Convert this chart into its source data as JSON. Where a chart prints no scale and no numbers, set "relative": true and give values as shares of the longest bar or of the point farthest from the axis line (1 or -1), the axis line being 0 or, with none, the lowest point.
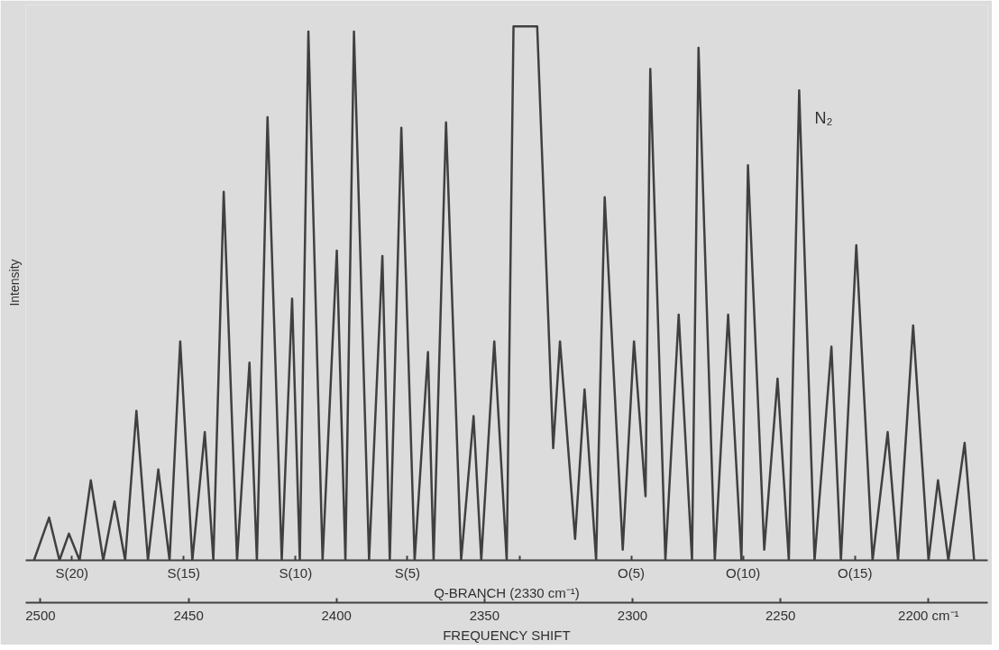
{
  "chart_data": {
    "type": "line",
    "relative": true,
    "xlabel": "FREQUENCY SHIFT",
    "ylabel": "Intensity",
    "annotations": [
      "N₂",
      "S(20)",
      "S(15)",
      "S(10)",
      "S(5)",
      "Q-BRANCH (2330 cm⁻¹)",
      "O(5)",
      "O(10)",
      "O(15)"
    ],
    "xlim": [
      2505,
      2180
    ],
    "xticks": [
      2500,
      2450,
      2400,
      2350,
      2300,
      2250,
      {
        "value": 2200,
        "label": "2200 cm⁻¹"
      }
    ],
    "grid": false,
    "marker": "none",
    "line_style": "solid",
    "series": [
      {
        "color": "#404040",
        "x": [
          2502.2,
          2497.1,
          2493.6,
          2490.4,
          2486.8,
          2483.0,
          2478.8,
          2475.0,
          2471.4,
          2467.6,
          2463.7,
          2460.2,
          2456.4,
          2452.8,
          2448.7,
          2444.5,
          2441.6,
          2438.1,
          2433.6,
          2429.4,
          2426.9,
          2423.3,
          2418.5,
          2415.0,
          2412.4,
          2409.5,
          2404.7,
          2399.9,
          2397.0,
          2394.1,
          2389.0,
          2384.5,
          2382.0,
          2378.1,
          2373.6,
          2369.1,
          2367.2,
          2363.0,
          2357.9,
          2353.7,
          2351.1,
          2346.7,
          2342.5,
          2340.2,
          2332.2,
          2326.8,
          2324.5,
          2319.4,
          2316.2,
          2312.3,
          2309.4,
          2303.3,
          2299.5,
          2295.6,
          2294.0,
          2288.9,
          2284.4,
          2279.9,
          2277.7,
          2272.2,
          2267.7,
          2263.2,
          2261.0,
          2255.5,
          2251.0,
          2247.2,
          2243.7,
          2238.5,
          2232.8,
          2229.6,
          2224.4,
          2218.9,
          2213.8,
          2210.3,
          2205.2,
          2200.0,
          2196.8,
          2193.3,
          2187.8,
          2184.6
        ],
        "values": [
          0,
          0.08,
          0,
          0.05,
          0,
          0.15,
          0,
          0.11,
          0,
          0.28,
          0,
          0.17,
          0,
          0.41,
          0,
          0.24,
          0,
          0.69,
          0,
          0.37,
          0,
          0.83,
          0,
          0.49,
          0,
          0.99,
          0,
          0.58,
          0,
          0.99,
          0,
          0.57,
          0,
          0.81,
          0,
          0.39,
          0,
          0.82,
          0,
          0.27,
          0,
          0.41,
          0,
          1.0,
          1.0,
          0.21,
          0.41,
          0.04,
          0.32,
          0,
          0.68,
          0.02,
          0.41,
          0.12,
          0.92,
          0,
          0.46,
          0,
          0.96,
          0,
          0.46,
          0,
          0.74,
          0.02,
          0.34,
          0,
          0.88,
          0,
          0.4,
          0,
          0.59,
          0,
          0.24,
          0,
          0.44,
          0,
          0.15,
          0,
          0.22,
          0
        ]
      }
    ]
  }
}
